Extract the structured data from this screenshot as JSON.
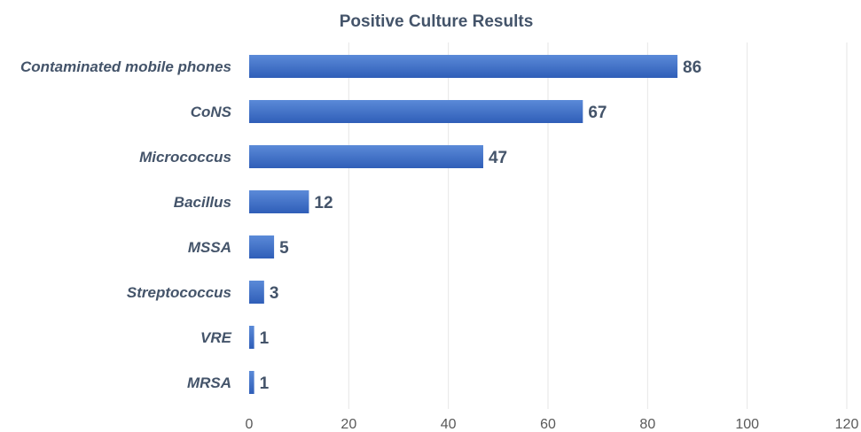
{
  "chart_data": {
    "type": "bar",
    "orientation": "horizontal",
    "title": "Positive Culture Results",
    "categories": [
      "Contaminated mobile phones",
      "CoNS",
      "Micrococcus",
      "Bacillus",
      "MSSA",
      "Streptococcus",
      "VRE",
      "MRSA"
    ],
    "values": [
      86,
      67,
      47,
      12,
      5,
      3,
      1,
      1
    ],
    "xlim": [
      0,
      120
    ],
    "xticks": [
      "0",
      "20",
      "40",
      "60",
      "80",
      "100",
      "120"
    ],
    "xlabel": "",
    "ylabel": "",
    "grid": true,
    "legend": "none",
    "bar_color": "#4472c4",
    "bar_color_light": "#5b8ad8",
    "bar_color_dark": "#2f5eb8"
  }
}
